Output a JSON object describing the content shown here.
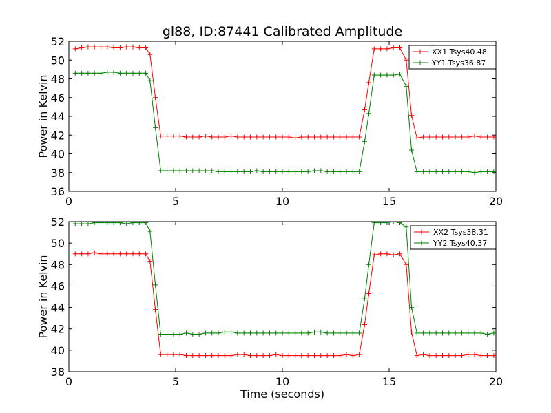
{
  "figure": {
    "title": "gl88, ID:87441 Calibrated Amplitude",
    "xlabel": "Time (seconds)"
  },
  "chart_data": [
    {
      "type": "line",
      "title": "gl88, ID:87441 Calibrated Amplitude",
      "xlabel": "",
      "ylabel": "Power in Kelvin",
      "xlim": [
        0,
        20
      ],
      "ylim": [
        36,
        52
      ],
      "xticks": [
        0,
        5,
        10,
        15,
        20
      ],
      "yticks": [
        36,
        38,
        40,
        42,
        44,
        46,
        48,
        50,
        52
      ],
      "grid": false,
      "legend": "top-right",
      "x": [
        0.3,
        0.6,
        0.9,
        1.2,
        1.5,
        1.8,
        2.1,
        2.4,
        2.7,
        3.0,
        3.3,
        3.6,
        3.8,
        4.05,
        4.3,
        4.6,
        4.9,
        5.2,
        5.5,
        5.8,
        6.1,
        6.4,
        6.7,
        7.0,
        7.3,
        7.6,
        7.9,
        8.2,
        8.5,
        8.8,
        9.1,
        9.4,
        9.7,
        10.0,
        10.3,
        10.6,
        10.9,
        11.2,
        11.5,
        11.8,
        12.1,
        12.4,
        12.7,
        13.0,
        13.3,
        13.6,
        13.85,
        14.05,
        14.3,
        14.6,
        14.9,
        15.2,
        15.5,
        15.8,
        16.05,
        16.3,
        16.6,
        16.9,
        17.2,
        17.5,
        17.8,
        18.1,
        18.4,
        18.7,
        19.0,
        19.3,
        19.6,
        19.9
      ],
      "series": [
        {
          "name": "XX1 Tsys40.48",
          "color": "#ff0000",
          "values": [
            51.2,
            51.3,
            51.4,
            51.4,
            51.4,
            51.4,
            51.3,
            51.3,
            51.4,
            51.4,
            51.3,
            51.3,
            50.6,
            46.0,
            41.9,
            41.9,
            41.9,
            41.9,
            41.8,
            41.8,
            41.8,
            41.9,
            41.8,
            41.8,
            41.8,
            41.9,
            41.8,
            41.8,
            41.8,
            41.8,
            41.8,
            41.8,
            41.8,
            41.8,
            41.8,
            41.7,
            41.8,
            41.8,
            41.8,
            41.8,
            41.8,
            41.8,
            41.8,
            41.8,
            41.8,
            41.8,
            44.7,
            47.6,
            51.2,
            51.2,
            51.2,
            51.3,
            51.3,
            50.0,
            44.1,
            41.7,
            41.8,
            41.8,
            41.8,
            41.8,
            41.8,
            41.8,
            41.8,
            41.8,
            41.9,
            41.8,
            41.8,
            41.8
          ]
        },
        {
          "name": "YY1 Tsys36.87",
          "color": "#008000",
          "values": [
            48.6,
            48.6,
            48.6,
            48.6,
            48.6,
            48.7,
            48.7,
            48.6,
            48.6,
            48.6,
            48.6,
            48.6,
            47.8,
            42.8,
            38.2,
            38.2,
            38.2,
            38.2,
            38.2,
            38.2,
            38.2,
            38.2,
            38.2,
            38.1,
            38.1,
            38.1,
            38.1,
            38.1,
            38.1,
            38.2,
            38.1,
            38.1,
            38.1,
            38.1,
            38.1,
            38.1,
            38.1,
            38.1,
            38.2,
            38.2,
            38.1,
            38.1,
            38.1,
            38.1,
            38.1,
            38.1,
            41.3,
            44.3,
            48.4,
            48.4,
            48.4,
            48.4,
            48.5,
            47.2,
            40.4,
            38.1,
            38.1,
            38.1,
            38.1,
            38.1,
            38.1,
            38.1,
            38.1,
            38.1,
            38.0,
            38.1,
            38.1,
            38.1
          ]
        }
      ]
    },
    {
      "type": "line",
      "title": "",
      "xlabel": "Time (seconds)",
      "ylabel": "Power in Kelvin",
      "xlim": [
        0,
        20
      ],
      "ylim": [
        38,
        52
      ],
      "xticks": [
        0,
        5,
        10,
        15,
        20
      ],
      "yticks": [
        38,
        40,
        42,
        44,
        46,
        48,
        50,
        52
      ],
      "grid": false,
      "legend": "top-right",
      "x": [
        0.3,
        0.6,
        0.9,
        1.2,
        1.5,
        1.8,
        2.1,
        2.4,
        2.7,
        3.0,
        3.3,
        3.6,
        3.8,
        4.05,
        4.3,
        4.6,
        4.9,
        5.2,
        5.5,
        5.8,
        6.1,
        6.4,
        6.7,
        7.0,
        7.3,
        7.6,
        7.9,
        8.2,
        8.5,
        8.8,
        9.1,
        9.4,
        9.7,
        10.0,
        10.3,
        10.6,
        10.9,
        11.2,
        11.5,
        11.8,
        12.1,
        12.4,
        12.7,
        13.0,
        13.3,
        13.6,
        13.85,
        14.05,
        14.3,
        14.6,
        14.9,
        15.2,
        15.5,
        15.8,
        16.05,
        16.3,
        16.6,
        16.9,
        17.2,
        17.5,
        17.8,
        18.1,
        18.4,
        18.7,
        19.0,
        19.3,
        19.6,
        19.9
      ],
      "series": [
        {
          "name": "XX2 Tsys38.31",
          "color": "#ff0000",
          "values": [
            49.0,
            49.0,
            49.0,
            49.1,
            49.0,
            49.0,
            49.0,
            49.0,
            49.0,
            49.0,
            49.0,
            49.0,
            48.3,
            43.8,
            39.6,
            39.6,
            39.6,
            39.6,
            39.5,
            39.5,
            39.5,
            39.5,
            39.5,
            39.5,
            39.5,
            39.5,
            39.6,
            39.6,
            39.5,
            39.5,
            39.5,
            39.5,
            39.6,
            39.5,
            39.5,
            39.5,
            39.5,
            39.5,
            39.5,
            39.5,
            39.5,
            39.5,
            39.5,
            39.6,
            39.5,
            39.6,
            42.4,
            45.3,
            48.9,
            49.0,
            49.0,
            48.9,
            49.0,
            48.0,
            41.7,
            39.5,
            39.6,
            39.5,
            39.5,
            39.5,
            39.5,
            39.5,
            39.5,
            39.6,
            39.6,
            39.5,
            39.5,
            39.5
          ]
        },
        {
          "name": "YY2 Tsys40.37",
          "color": "#008000",
          "values": [
            51.8,
            51.8,
            51.8,
            51.9,
            51.9,
            51.9,
            51.9,
            51.9,
            51.8,
            51.9,
            51.9,
            51.9,
            51.1,
            46.1,
            41.5,
            41.5,
            41.5,
            41.5,
            41.6,
            41.5,
            41.5,
            41.6,
            41.6,
            41.6,
            41.7,
            41.7,
            41.6,
            41.6,
            41.6,
            41.6,
            41.6,
            41.6,
            41.6,
            41.6,
            41.6,
            41.6,
            41.6,
            41.6,
            41.7,
            41.7,
            41.6,
            41.6,
            41.6,
            41.6,
            41.6,
            41.6,
            44.8,
            48.0,
            51.9,
            51.9,
            51.9,
            52.0,
            51.9,
            51.5,
            44.0,
            41.6,
            41.6,
            41.6,
            41.6,
            41.6,
            41.6,
            41.6,
            41.6,
            41.6,
            41.6,
            41.6,
            41.5,
            41.6
          ]
        }
      ]
    }
  ]
}
